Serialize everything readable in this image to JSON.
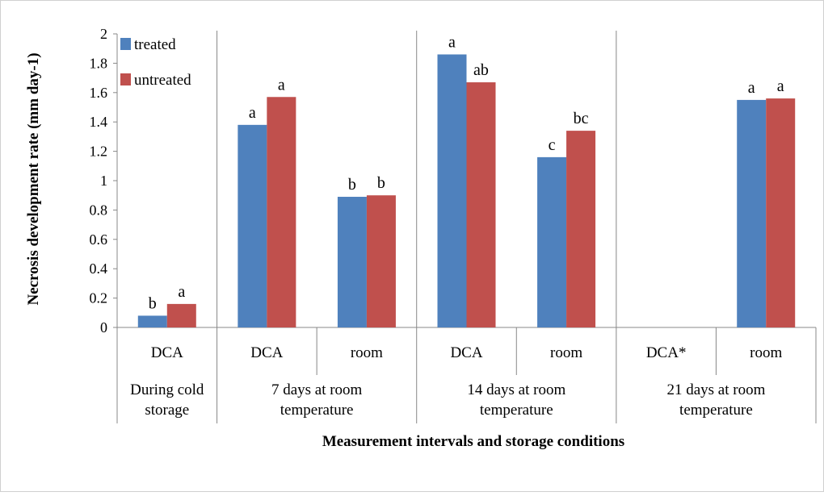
{
  "chart_data": {
    "type": "bar",
    "title": "",
    "xlabel": "Measurement  intervals and storage conditions",
    "ylabel": "Necrosis development rate  (mm day-1)",
    "ylim": [
      0,
      2
    ],
    "yticks": [
      "0",
      "0.2",
      "0.4",
      "0.6",
      "0.8",
      "1",
      "1.2",
      "1.4",
      "1.6",
      "1.8",
      "2"
    ],
    "grid": false,
    "legend_position": "top-left",
    "categories": [
      "DCA",
      "DCA",
      "room",
      "DCA",
      "room",
      "DCA*",
      "room"
    ],
    "groups": [
      {
        "label_line1": "During cold",
        "label_line2": "storage",
        "span": 1
      },
      {
        "label_line1": "7 days at room",
        "label_line2": "temperature",
        "span": 2
      },
      {
        "label_line1": "14 days at room",
        "label_line2": "temperature",
        "span": 2
      },
      {
        "label_line1": "21 days at room",
        "label_line2": "temperature",
        "span": 2
      }
    ],
    "series": [
      {
        "name": "treated",
        "color": "#4f81bd",
        "values": [
          0.08,
          1.38,
          0.89,
          1.86,
          1.16,
          null,
          1.55
        ],
        "labels": [
          "b",
          "a",
          "b",
          "a",
          "c",
          "",
          "a"
        ]
      },
      {
        "name": "untreated",
        "color": "#c0504d",
        "values": [
          0.16,
          1.57,
          0.9,
          1.67,
          1.34,
          null,
          1.56
        ],
        "labels": [
          "a",
          "a",
          "b",
          "ab",
          "bc",
          "",
          "a"
        ]
      }
    ]
  }
}
